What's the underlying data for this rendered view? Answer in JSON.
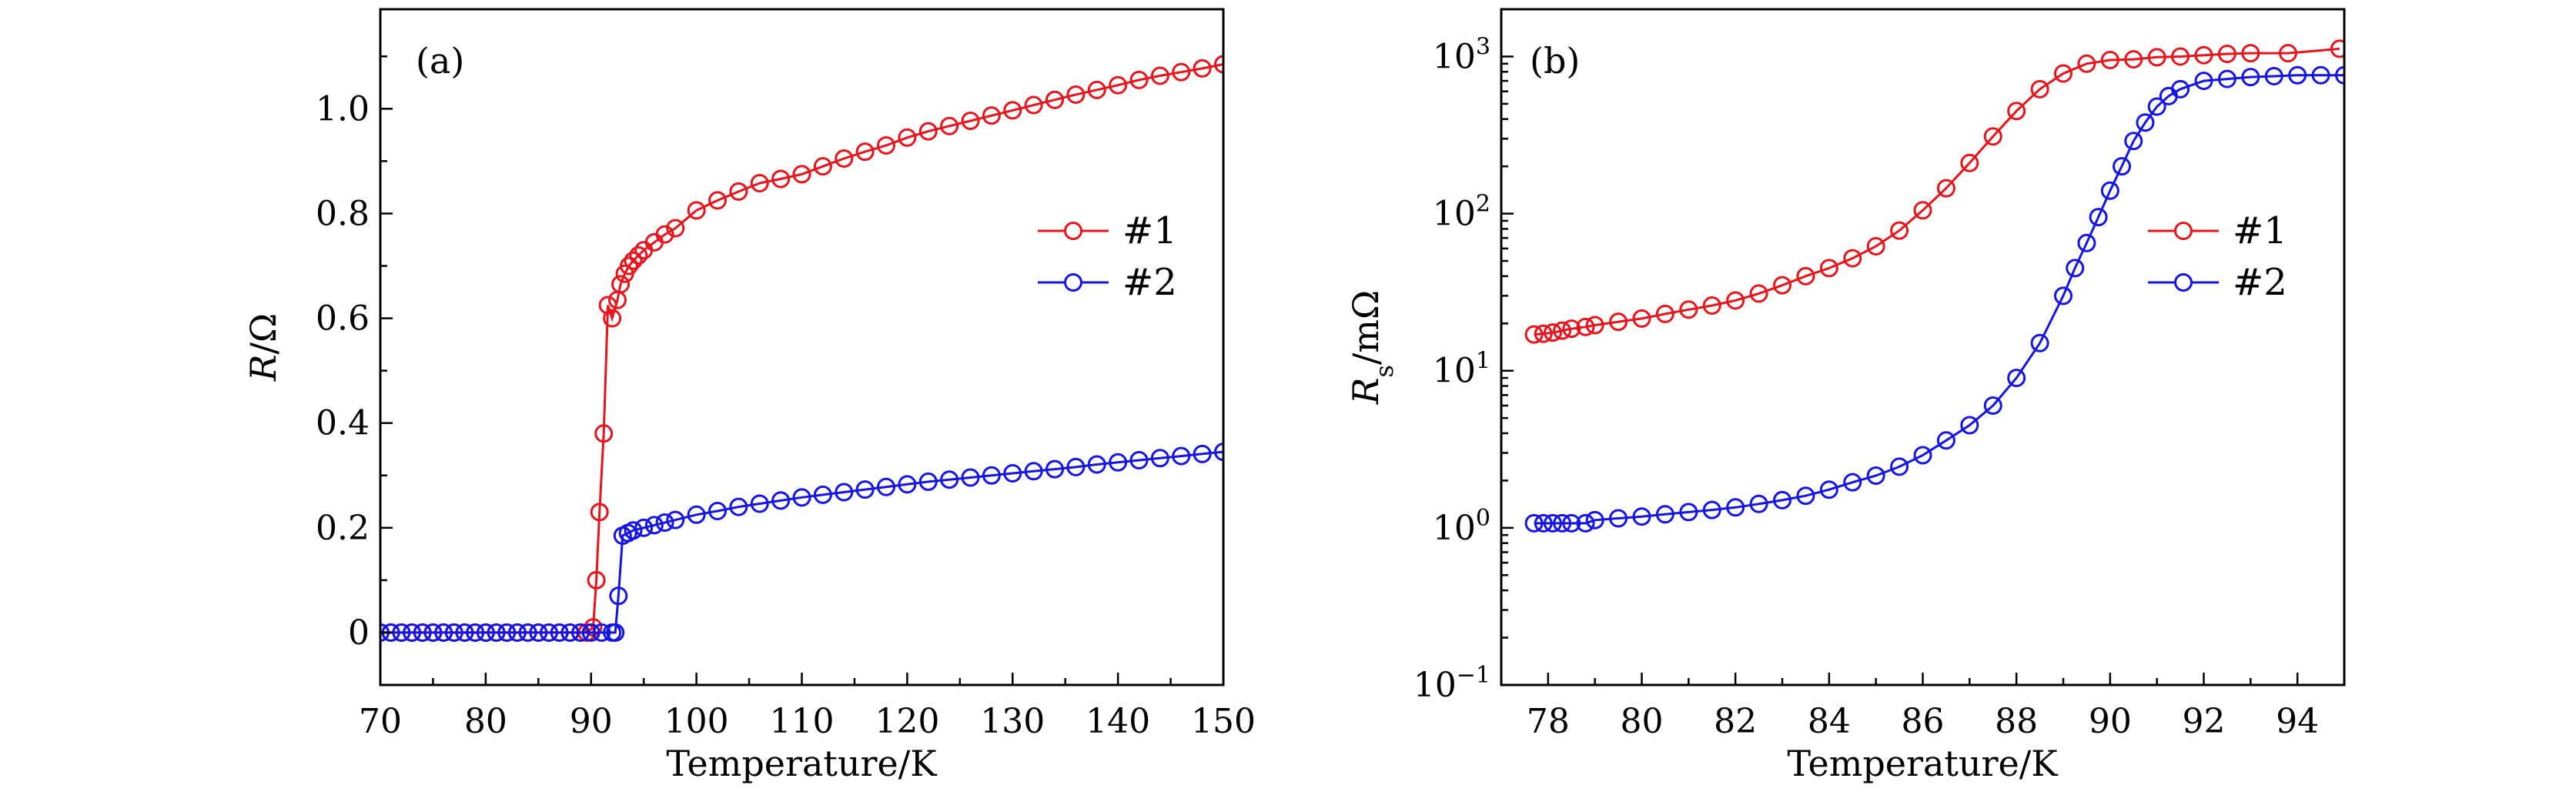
{
  "chart_data": [
    {
      "type": "line",
      "panel_label": "(a)",
      "xlabel": "Temperature/K",
      "ylabel": {
        "symbol": "R",
        "unit": "/Ω"
      },
      "xlim": [
        70,
        150
      ],
      "ylim": [
        -0.1,
        1.19
      ],
      "yscale": "linear",
      "xticks": [
        70,
        80,
        90,
        100,
        110,
        120,
        130,
        140,
        150
      ],
      "yticks": [
        0,
        0.2,
        0.4,
        0.6,
        0.8,
        1.0
      ],
      "ytick_labels": [
        "0",
        "0.2",
        "0.4",
        "0.6",
        "0.8",
        "1.0"
      ],
      "grid": false,
      "legend_position": "right",
      "series": [
        {
          "name": "#1",
          "color": "#e8141c",
          "x": [
            70,
            71,
            72,
            73,
            74,
            75,
            76,
            77,
            78,
            79,
            80,
            81,
            82,
            83,
            84,
            85,
            86,
            87,
            88,
            89,
            89.6,
            90.2,
            90.5,
            90.8,
            91.2,
            91.6,
            92.0,
            92.5,
            92.8,
            93.2,
            93.6,
            94,
            94.5,
            95,
            96,
            97,
            98,
            100,
            102,
            104,
            106,
            108,
            110,
            112,
            114,
            116,
            118,
            120,
            122,
            124,
            126,
            128,
            130,
            132,
            134,
            136,
            138,
            140,
            142,
            144,
            146,
            148,
            150
          ],
          "y": [
            0,
            0,
            0,
            0,
            0,
            0,
            0,
            0,
            0,
            0,
            0,
            0,
            0,
            0,
            0,
            0,
            0,
            0,
            0,
            0,
            0,
            0.01,
            0.1,
            0.23,
            0.38,
            0.625,
            0.6,
            0.635,
            0.665,
            0.685,
            0.7,
            0.71,
            0.72,
            0.73,
            0.745,
            0.76,
            0.772,
            0.806,
            0.825,
            0.842,
            0.858,
            0.866,
            0.875,
            0.89,
            0.905,
            0.918,
            0.93,
            0.945,
            0.957,
            0.967,
            0.977,
            0.987,
            0.997,
            1.007,
            1.017,
            1.027,
            1.036,
            1.045,
            1.055,
            1.063,
            1.07,
            1.077,
            1.085
          ]
        },
        {
          "name": "#2",
          "color": "#1414e6",
          "x": [
            70,
            71,
            72,
            73,
            74,
            75,
            76,
            77,
            78,
            79,
            80,
            81,
            82,
            83,
            84,
            85,
            86,
            87,
            88,
            89,
            90,
            91,
            92,
            92.3,
            92.6,
            93,
            93.5,
            94,
            95,
            96,
            97,
            98,
            100,
            102,
            104,
            106,
            108,
            110,
            112,
            114,
            116,
            118,
            120,
            122,
            124,
            126,
            128,
            130,
            132,
            134,
            136,
            138,
            140,
            142,
            144,
            146,
            148,
            150
          ],
          "y": [
            0,
            0,
            0,
            0,
            0,
            0,
            0,
            0,
            0,
            0,
            0,
            0,
            0,
            0,
            0,
            0,
            0,
            0,
            0,
            0,
            0,
            0,
            0,
            0,
            0.07,
            0.185,
            0.19,
            0.195,
            0.2,
            0.205,
            0.21,
            0.215,
            0.225,
            0.232,
            0.24,
            0.246,
            0.252,
            0.258,
            0.263,
            0.268,
            0.273,
            0.278,
            0.283,
            0.288,
            0.292,
            0.296,
            0.3,
            0.304,
            0.308,
            0.312,
            0.316,
            0.321,
            0.325,
            0.329,
            0.333,
            0.337,
            0.341,
            0.345
          ]
        }
      ]
    },
    {
      "type": "line",
      "panel_label": "(b)",
      "xlabel": "Temperature/K",
      "ylabel": {
        "symbol": "R",
        "subscript": "s",
        "unit": "/mΩ"
      },
      "xlim": [
        77,
        95
      ],
      "ylim": [
        0.1,
        2000
      ],
      "yscale": "log",
      "xticks": [
        78,
        80,
        82,
        84,
        86,
        88,
        90,
        92,
        94
      ],
      "yticks": [
        0.1,
        1,
        10,
        100,
        1000
      ],
      "ytick_labels": [
        {
          "base": "10",
          "exp": "−1"
        },
        {
          "base": "10",
          "exp": "0"
        },
        {
          "base": "10",
          "exp": "1"
        },
        {
          "base": "10",
          "exp": "2"
        },
        {
          "base": "10",
          "exp": "3"
        }
      ],
      "grid": false,
      "legend_position": "right",
      "series": [
        {
          "name": "#1",
          "color": "#e8141c",
          "x": [
            77.7,
            77.9,
            78.1,
            78.3,
            78.5,
            78.8,
            79,
            79.5,
            80,
            80.5,
            81,
            81.5,
            82,
            82.5,
            83,
            83.5,
            84,
            84.5,
            85,
            85.5,
            86,
            86.5,
            87,
            87.5,
            88,
            88.5,
            89,
            89.5,
            90,
            90.5,
            91,
            91.5,
            92,
            92.5,
            93,
            93.8,
            94.9
          ],
          "y": [
            17,
            17.2,
            17.5,
            18,
            18.5,
            19,
            19.5,
            20.5,
            21.5,
            23,
            24.5,
            26,
            28,
            31,
            35,
            40,
            45,
            52,
            62,
            78,
            105,
            145,
            210,
            310,
            450,
            620,
            780,
            900,
            950,
            960,
            990,
            1000,
            1020,
            1040,
            1050,
            1050,
            1120
          ]
        },
        {
          "name": "#2",
          "color": "#1414e6",
          "x": [
            77.7,
            77.9,
            78.1,
            78.3,
            78.5,
            78.8,
            79,
            79.5,
            80,
            80.5,
            81,
            81.5,
            82,
            82.5,
            83,
            83.5,
            84,
            84.5,
            85,
            85.5,
            86,
            86.5,
            87,
            87.5,
            88,
            88.5,
            89,
            89.25,
            89.5,
            89.75,
            90,
            90.25,
            90.5,
            90.75,
            91,
            91.25,
            91.5,
            92,
            92.5,
            93,
            93.5,
            94,
            94.5,
            95
          ],
          "y": [
            1.07,
            1.07,
            1.07,
            1.07,
            1.07,
            1.07,
            1.12,
            1.15,
            1.18,
            1.22,
            1.26,
            1.3,
            1.35,
            1.42,
            1.5,
            1.6,
            1.75,
            1.95,
            2.15,
            2.45,
            2.9,
            3.6,
            4.5,
            6,
            9,
            15,
            30,
            45,
            65,
            95,
            140,
            200,
            290,
            380,
            480,
            560,
            620,
            700,
            720,
            740,
            750,
            760,
            760,
            760
          ]
        }
      ]
    }
  ]
}
